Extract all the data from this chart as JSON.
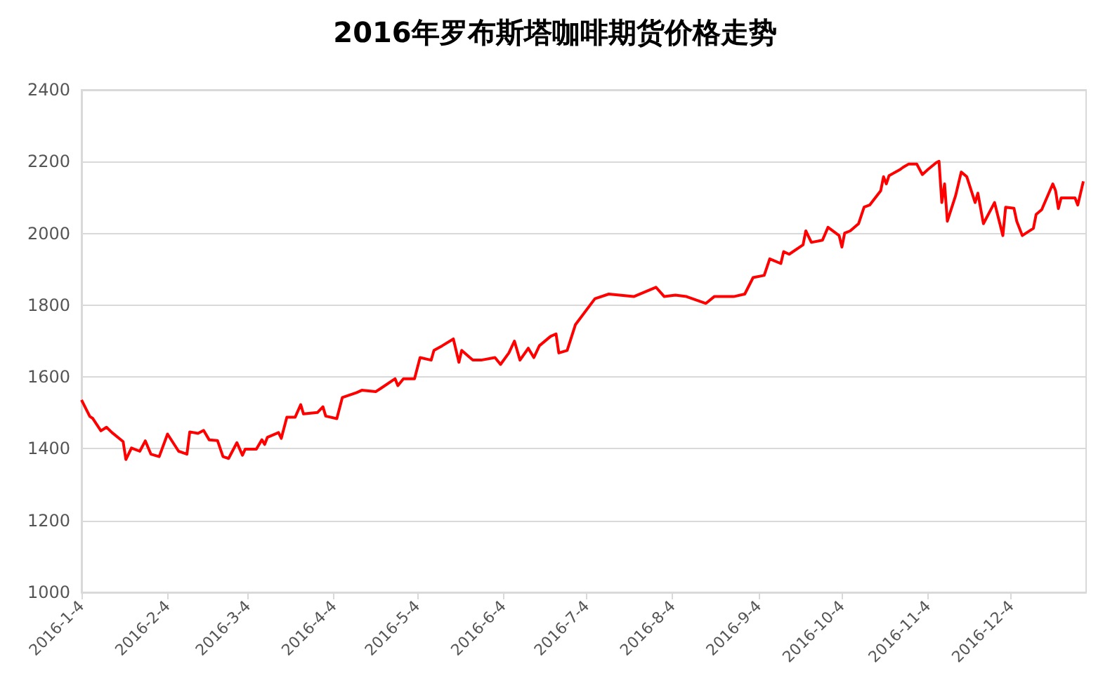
{
  "chart_data": {
    "type": "line",
    "title": "2016年罗布斯塔咖啡期货价格走势",
    "x": [
      "2016-01-04",
      "2016-01-07",
      "2016-01-08",
      "2016-01-11",
      "2016-01-13",
      "2016-01-15",
      "2016-01-19",
      "2016-01-20",
      "2016-01-22",
      "2016-01-25",
      "2016-01-27",
      "2016-01-29",
      "2016-02-01",
      "2016-02-04",
      "2016-02-08",
      "2016-02-11",
      "2016-02-12",
      "2016-02-15",
      "2016-02-17",
      "2016-02-19",
      "2016-02-22",
      "2016-02-24",
      "2016-02-26",
      "2016-02-29",
      "2016-03-02",
      "2016-03-03",
      "2016-03-07",
      "2016-03-09",
      "2016-03-10",
      "2016-03-11",
      "2016-03-15",
      "2016-03-16",
      "2016-03-18",
      "2016-03-21",
      "2016-03-23",
      "2016-03-24",
      "2016-03-29",
      "2016-03-31",
      "2016-04-01",
      "2016-04-05",
      "2016-04-07",
      "2016-04-12",
      "2016-04-14",
      "2016-04-19",
      "2016-04-21",
      "2016-04-26",
      "2016-04-27",
      "2016-04-29",
      "2016-05-03",
      "2016-05-05",
      "2016-05-09",
      "2016-05-10",
      "2016-05-13",
      "2016-05-17",
      "2016-05-19",
      "2016-05-20",
      "2016-05-24",
      "2016-05-27",
      "2016-06-01",
      "2016-06-03",
      "2016-06-06",
      "2016-06-08",
      "2016-06-10",
      "2016-06-13",
      "2016-06-15",
      "2016-06-17",
      "2016-06-21",
      "2016-06-23",
      "2016-06-24",
      "2016-06-27",
      "2016-06-30",
      "2016-07-07",
      "2016-07-12",
      "2016-07-21",
      "2016-07-29",
      "2016-08-01",
      "2016-08-05",
      "2016-08-09",
      "2016-08-16",
      "2016-08-19",
      "2016-08-26",
      "2016-08-30",
      "2016-09-02",
      "2016-09-06",
      "2016-09-08",
      "2016-09-12",
      "2016-09-13",
      "2016-09-15",
      "2016-09-20",
      "2016-09-21",
      "2016-09-23",
      "2016-09-27",
      "2016-09-29",
      "2016-10-03",
      "2016-10-04",
      "2016-10-05",
      "2016-10-07",
      "2016-10-10",
      "2016-10-12",
      "2016-10-14",
      "2016-10-18",
      "2016-10-19",
      "2016-10-20",
      "2016-10-21",
      "2016-10-25",
      "2016-10-26",
      "2016-10-28",
      "2016-10-31",
      "2016-11-02",
      "2016-11-04",
      "2016-11-07",
      "2016-11-08",
      "2016-11-09",
      "2016-11-10",
      "2016-11-11",
      "2016-11-14",
      "2016-11-16",
      "2016-11-18",
      "2016-11-21",
      "2016-11-22",
      "2016-11-24",
      "2016-11-28",
      "2016-12-01",
      "2016-12-02",
      "2016-12-05",
      "2016-12-06",
      "2016-12-08",
      "2016-12-12",
      "2016-12-13",
      "2016-12-15",
      "2016-12-19",
      "2016-12-20",
      "2016-12-21",
      "2016-12-22",
      "2016-12-27",
      "2016-12-28",
      "2016-12-30"
    ],
    "series": [
      {
        "color": "#ff0000",
        "values": [
          1536,
          1490,
          1485,
          1450,
          1460,
          1445,
          1420,
          1370,
          1402,
          1393,
          1422,
          1385,
          1378,
          1441,
          1393,
          1385,
          1447,
          1443,
          1451,
          1425,
          1423,
          1378,
          1373,
          1417,
          1382,
          1399,
          1399,
          1425,
          1412,
          1432,
          1445,
          1429,
          1488,
          1488,
          1523,
          1497,
          1501,
          1517,
          1491,
          1484,
          1543,
          1556,
          1563,
          1559,
          1569,
          1595,
          1576,
          1595,
          1595,
          1654,
          1647,
          1674,
          1687,
          1706,
          1641,
          1674,
          1647,
          1647,
          1654,
          1635,
          1667,
          1700,
          1647,
          1680,
          1654,
          1687,
          1713,
          1720,
          1667,
          1674,
          1746,
          1818,
          1831,
          1824,
          1850,
          1824,
          1828,
          1824,
          1805,
          1824,
          1824,
          1831,
          1877,
          1883,
          1929,
          1916,
          1949,
          1942,
          1968,
          2007,
          1975,
          1981,
          2017,
          1994,
          1962,
          2001,
          2007,
          2027,
          2073,
          2079,
          2119,
          2158,
          2138,
          2161,
          2178,
          2184,
          2193,
          2193,
          2164,
          2178,
          2197,
          2201,
          2086,
          2138,
          2034,
          2106,
          2171,
          2158,
          2086,
          2112,
          2027,
          2086,
          1994,
          2073,
          2070,
          2034,
          1994,
          2014,
          2053,
          2066,
          2138,
          2119,
          2069,
          2099,
          2099,
          2079,
          2145
        ]
      }
    ],
    "xlim": [
      "2016-01-04",
      "2016-12-31"
    ],
    "xticks": [
      {
        "value": "2016-01-04",
        "label": "2016-1-4"
      },
      {
        "value": "2016-02-04",
        "label": "2016-2-4"
      },
      {
        "value": "2016-03-04",
        "label": "2016-3-4"
      },
      {
        "value": "2016-04-04",
        "label": "2016-4-4"
      },
      {
        "value": "2016-05-04",
        "label": "2016-5-4"
      },
      {
        "value": "2016-06-04",
        "label": "2016-6-4"
      },
      {
        "value": "2016-07-04",
        "label": "2016-7-4"
      },
      {
        "value": "2016-08-04",
        "label": "2016-8-4"
      },
      {
        "value": "2016-09-04",
        "label": "2016-9-4"
      },
      {
        "value": "2016-10-04",
        "label": "2016-10-4"
      },
      {
        "value": "2016-11-04",
        "label": "2016-11-4"
      },
      {
        "value": "2016-12-04",
        "label": "2016-12-4"
      }
    ],
    "ylim": [
      1000,
      2400
    ],
    "yticks": [
      1000,
      1200,
      1400,
      1600,
      1800,
      2000,
      2200,
      2400
    ],
    "grid": "y",
    "marker": "none",
    "line_style": "solid"
  }
}
